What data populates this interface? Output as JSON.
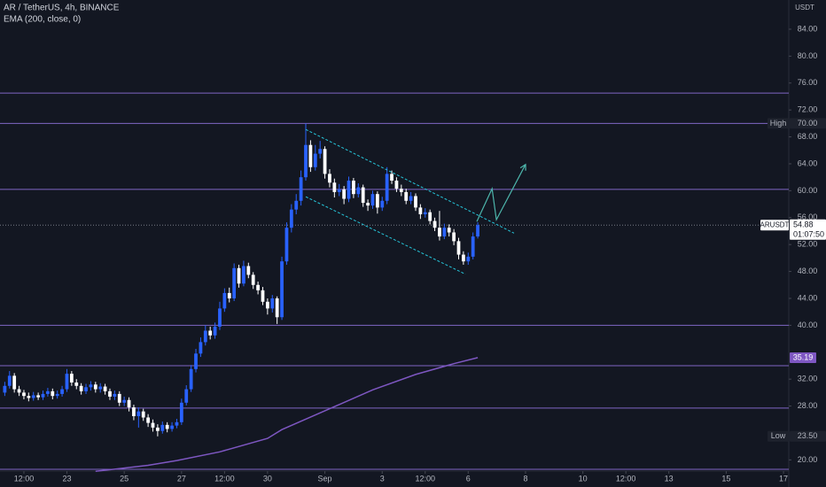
{
  "chart_data": {
    "type": "candlestick",
    "title": "AR / TetherUS, 4h, BINANCE",
    "currency": "USDT",
    "up_color": "#2962ff",
    "down_color": "#ffffff",
    "xlim": [
      -1,
      164.1
    ],
    "xticks": [
      {
        "value": 4,
        "label": "12:00"
      },
      {
        "value": 13,
        "label": "23"
      },
      {
        "value": 25,
        "label": "25"
      },
      {
        "value": 37,
        "label": "27"
      },
      {
        "value": 46,
        "label": "12:00"
      },
      {
        "value": 55,
        "label": "30"
      },
      {
        "value": 67,
        "label": "Sep"
      },
      {
        "value": 79,
        "label": "3"
      },
      {
        "value": 88,
        "label": "12:00"
      },
      {
        "value": 97,
        "label": "6"
      },
      {
        "value": 109,
        "label": "8"
      },
      {
        "value": 121,
        "label": "10"
      },
      {
        "value": 130,
        "label": "12:00"
      },
      {
        "value": 139,
        "label": "13"
      },
      {
        "value": 151,
        "label": "15"
      },
      {
        "value": 163,
        "label": "17"
      }
    ],
    "ylim": [
      18.34,
      88.34
    ],
    "yticks": [
      {
        "value": 20,
        "label": "20.00"
      },
      {
        "value": 28,
        "label": "28.00"
      },
      {
        "value": 32,
        "label": "32.00"
      },
      {
        "value": 40,
        "label": "40.00"
      },
      {
        "value": 44,
        "label": "44.00"
      },
      {
        "value": 48,
        "label": "48.00"
      },
      {
        "value": 52,
        "label": "52.00"
      },
      {
        "value": 56,
        "label": "56.00"
      },
      {
        "value": 60,
        "label": "60.00"
      },
      {
        "value": 64,
        "label": "64.00"
      },
      {
        "value": 68,
        "label": "68.00"
      },
      {
        "value": 72,
        "label": "72.00"
      },
      {
        "value": 76,
        "label": "76.00"
      },
      {
        "value": 80,
        "label": "80.00"
      },
      {
        "value": 84,
        "label": "84.00"
      }
    ],
    "open": [
      30,
      31,
      32.5,
      30.5,
      30,
      29.5,
      29.2,
      29.6,
      29.3,
      29.8,
      30.2,
      29.5,
      29.8,
      30.5,
      32.8,
      31.5,
      31,
      30.2,
      30.8,
      31.2,
      30.5,
      30.9,
      30.2,
      29.4,
      29.8,
      28.5,
      28.9,
      27.8,
      26.5,
      27.2,
      26.3,
      25.5,
      24.8,
      24.3,
      25.2,
      24.6,
      25.1,
      25.6,
      28.5,
      30.5,
      33.5,
      35.8,
      37.5,
      39.2,
      38.5,
      39.8,
      42.5,
      44.8,
      44,
      48.5,
      46.2,
      48.8,
      47.5,
      46,
      45.2,
      43.5,
      42.5,
      44,
      41.2,
      49.5,
      54.5,
      57.2,
      58.5,
      62,
      66.8,
      63.5,
      65.5,
      66.2,
      62.5,
      61.2,
      59.8,
      60.2,
      58.8,
      61.5,
      59.5,
      60.5,
      58.2,
      57.8,
      59.5,
      57.5,
      58.5,
      62.5,
      61.5,
      60.3,
      59.8,
      58.5,
      59.2,
      57.5,
      56.5,
      56.8,
      55.5,
      54.5,
      53.2,
      54.5,
      53.8,
      52.5,
      50.5,
      49.5,
      50.2,
      53.2
    ],
    "high": [
      31.6,
      33.2,
      32.9,
      31.0,
      30.4,
      30.0,
      30.1,
      30.0,
      30.3,
      30.7,
      30.6,
      30.3,
      31.0,
      33.5,
      33.2,
      32.0,
      31.4,
      31.3,
      31.7,
      31.6,
      31.4,
      31.3,
      30.6,
      30.3,
      30.2,
      29.4,
      29.3,
      28.2,
      27.8,
      27.6,
      26.8,
      26.0,
      25.3,
      25.7,
      25.6,
      25.6,
      26.1,
      29.1,
      31.1,
      34.1,
      36.5,
      38.2,
      40.0,
      39.8,
      40.4,
      43.5,
      45.5,
      45.6,
      49.2,
      49.0,
      49.6,
      49.3,
      47.9,
      46.5,
      45.7,
      44.0,
      44.5,
      44.3,
      50.2,
      55.3,
      58.0,
      59.5,
      63.0,
      70.0,
      67.5,
      66.8,
      67.4,
      66.6,
      63.2,
      61.8,
      61.0,
      60.7,
      62.1,
      61.9,
      61.1,
      60.9,
      58.7,
      60.0,
      59.9,
      59.1,
      63.5,
      63.0,
      62.0,
      60.9,
      60.3,
      59.8,
      59.6,
      58.0,
      57.4,
      57.2,
      56.0,
      57.0,
      55.1,
      55.0,
      54.3,
      53.0,
      51.0,
      50.8,
      53.8,
      55.3
    ],
    "low": [
      29.5,
      30.6,
      30.0,
      29.5,
      29.0,
      28.7,
      28.8,
      28.9,
      28.9,
      29.4,
      29.0,
      29.1,
      29.4,
      30.1,
      31.0,
      30.5,
      29.7,
      29.8,
      30.3,
      30.0,
      30.0,
      29.7,
      28.9,
      28.9,
      28.0,
      28.0,
      27.2,
      25.9,
      24.8,
      25.8,
      24.9,
      24.2,
      23.5,
      23.9,
      24.1,
      24.2,
      24.7,
      25.2,
      28.1,
      30.1,
      33.0,
      35.3,
      37.0,
      37.9,
      38.0,
      39.3,
      42.0,
      43.4,
      43.6,
      45.6,
      45.8,
      47.0,
      45.4,
      44.6,
      43.0,
      41.6,
      41.9,
      40.2,
      40.8,
      49.0,
      53.8,
      56.5,
      57.8,
      61.5,
      62.8,
      63.0,
      64.8,
      61.8,
      60.5,
      59.0,
      59.2,
      58.0,
      58.3,
      58.9,
      59.0,
      57.6,
      57.0,
      57.3,
      56.6,
      57.0,
      58.0,
      61.0,
      59.8,
      59.2,
      58.0,
      58.0,
      57.0,
      55.8,
      56.0,
      55.0,
      54.0,
      52.6,
      52.8,
      53.2,
      51.9,
      49.8,
      49.0,
      49.0,
      49.8,
      52.9
    ],
    "close": [
      31,
      32.5,
      30.5,
      30,
      29.5,
      29.2,
      29.6,
      29.3,
      29.8,
      30.2,
      29.5,
      29.8,
      30.5,
      32.8,
      31.5,
      31,
      30.2,
      30.8,
      31.2,
      30.5,
      30.9,
      30.2,
      29.4,
      29.8,
      28.5,
      28.9,
      27.8,
      26.5,
      27.2,
      26.3,
      25.5,
      24.8,
      24.3,
      25.2,
      24.6,
      25.1,
      25.6,
      28.5,
      30.5,
      33.5,
      35.8,
      37.5,
      39.2,
      38.5,
      39.8,
      42.5,
      44.8,
      44,
      48.5,
      46.2,
      48.8,
      47.5,
      46,
      45.2,
      43.5,
      42.5,
      44,
      41.2,
      49.5,
      54.5,
      57.2,
      58.5,
      62,
      66.8,
      63.5,
      65.5,
      66.2,
      62.5,
      61.2,
      59.8,
      60.2,
      58.8,
      61.5,
      59.5,
      60.5,
      58.2,
      57.8,
      59.5,
      57.5,
      58.5,
      62.5,
      61.5,
      60.3,
      59.8,
      58.5,
      59.2,
      57.5,
      56.5,
      56.8,
      55.5,
      54.5,
      53.2,
      54.5,
      53.8,
      52.5,
      50.5,
      49.5,
      50.2,
      53.2,
      54.88
    ],
    "symbol": "ARUSDT",
    "last_price": {
      "value": 54.88,
      "label": "54.88"
    },
    "countdown": "01:07:50",
    "ema": {
      "name": "EMA (200, close, 0)",
      "color": "#7e57c2",
      "x": [
        19,
        30,
        36,
        45,
        55,
        58,
        68,
        77,
        86,
        94,
        99
      ],
      "values": [
        18.3,
        19.2,
        19.9,
        21.2,
        23.2,
        24.5,
        27.6,
        30.4,
        32.7,
        34.3,
        35.19
      ],
      "value_label": "35.19"
    },
    "high_marker": {
      "label": "High",
      "value": 70,
      "value_label": "70.00"
    },
    "low_marker": {
      "label": "Low",
      "value": 23.5,
      "value_label": "23.50"
    },
    "levels": [
      74.5,
      70,
      60.2,
      40,
      34,
      27.7,
      18.6
    ],
    "level_color": "#8b6fd6",
    "channel": {
      "color": "#26c6da",
      "lines": [
        {
          "x": [
            63,
            106.6
          ],
          "values": [
            69.1,
            53.7
          ]
        },
        {
          "x": [
            63,
            96.4
          ],
          "values": [
            59.1,
            47.6
          ]
        }
      ]
    },
    "arrow": {
      "color": "#4db6ac",
      "x": [
        98.8,
        102,
        102.9,
        109
      ],
      "values": [
        55.4,
        60.3,
        55.7,
        63.9
      ]
    }
  }
}
